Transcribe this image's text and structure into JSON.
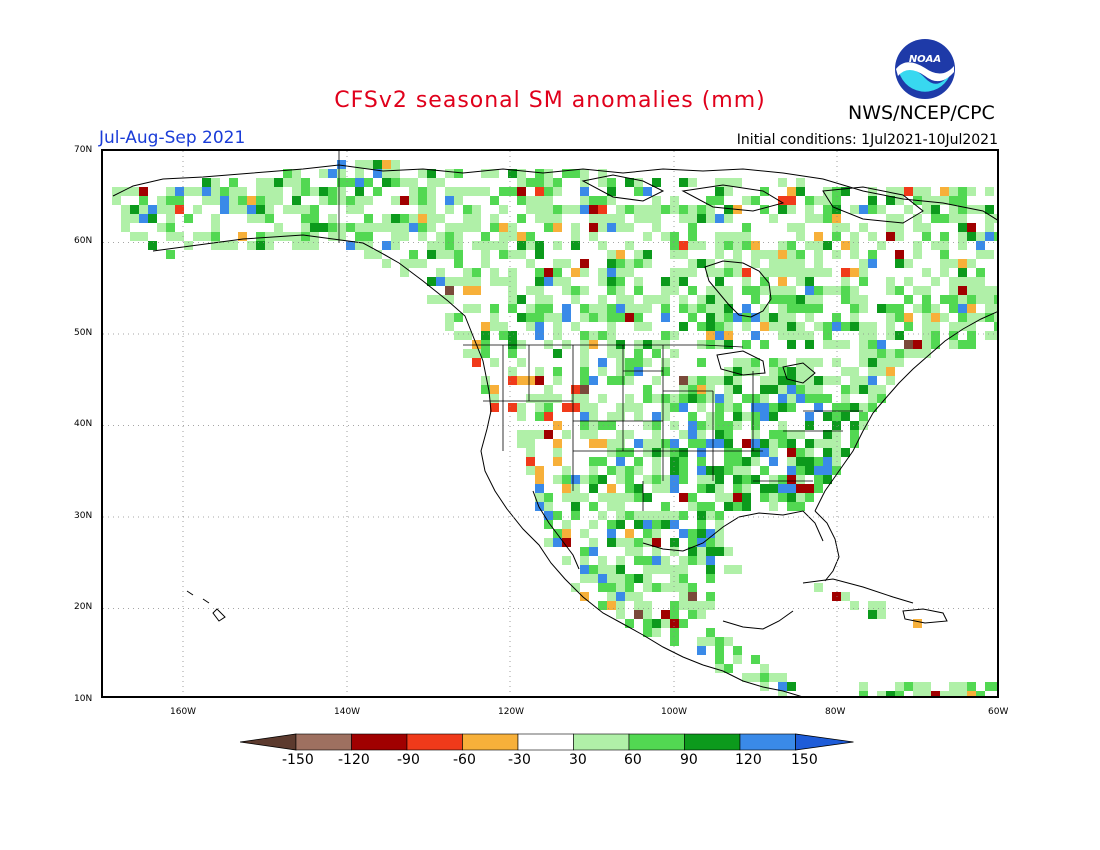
{
  "header": {
    "title": "CFSv2 seasonal SM anomalies (mm)",
    "period": "Jul-Aug-Sep 2021",
    "agency": "NWS/NCEP/CPC",
    "initial_conditions": "Initial conditions: 1Jul2021-10Jul2021",
    "logo_text": "NOAA"
  },
  "axes": {
    "lat_labels": [
      "70N",
      "60N",
      "50N",
      "40N",
      "30N",
      "20N",
      "10N"
    ],
    "lon_labels": [
      "160W",
      "140W",
      "120W",
      "100W",
      "80W",
      "60W"
    ]
  },
  "colorbar": {
    "labels": [
      "-150",
      "-120",
      "-90",
      "-60",
      "-30",
      "30",
      "60",
      "90",
      "120",
      "150"
    ],
    "colors": [
      "#5c3a2e",
      "#9e7060",
      "#a00000",
      "#f03a1a",
      "#f7b03a",
      "#ffffff",
      "#b0f0a8",
      "#52d852",
      "#0c9a1c",
      "#3a8ae8",
      "#1e5cd8"
    ]
  },
  "map": {
    "lon_range": [
      -172,
      -60
    ],
    "lat_range": [
      10,
      70
    ],
    "grid": true,
    "colors": {
      "light_green": "#b0f0a8",
      "green": "#52d852",
      "dark_green": "#0c9a1c",
      "blue": "#3a8ae8",
      "orange": "#f7b03a",
      "red_orange": "#f03a1a",
      "dark_red": "#a00000",
      "brown": "#7a4a3a"
    }
  }
}
